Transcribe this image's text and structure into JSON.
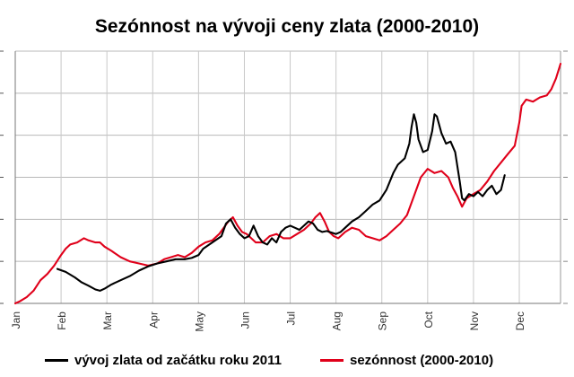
{
  "title": "Sezónnost na vývoji ceny zlata (2000-2010)",
  "chart_data": {
    "type": "line",
    "title": "Sezónnost na vývoji ceny zlata (2000-2010)",
    "xlabel": "",
    "ylabel": "",
    "x_tick_labels": [
      "Jan",
      "Feb",
      "Mar",
      "Apr",
      "May",
      "Jun",
      "Jul",
      "Aug",
      "Sep",
      "Oct",
      "Nov",
      "Dec"
    ],
    "y_tick_labels": [],
    "grid": true,
    "legend_position": "bottom",
    "x_unit": "months since start of year",
    "xlim": [
      0,
      11.9
    ],
    "ylim": [
      0,
      6
    ],
    "series": [
      {
        "name": "vývoj zlata od začátku roku 2011",
        "color": "#000000",
        "points": [
          [
            0.92,
            0.82
          ],
          [
            1.1,
            0.75
          ],
          [
            1.3,
            0.62
          ],
          [
            1.45,
            0.5
          ],
          [
            1.6,
            0.42
          ],
          [
            1.75,
            0.33
          ],
          [
            1.85,
            0.3
          ],
          [
            1.95,
            0.35
          ],
          [
            2.1,
            0.45
          ],
          [
            2.3,
            0.55
          ],
          [
            2.5,
            0.65
          ],
          [
            2.7,
            0.78
          ],
          [
            2.9,
            0.88
          ],
          [
            3.1,
            0.95
          ],
          [
            3.3,
            1.0
          ],
          [
            3.5,
            1.05
          ],
          [
            3.7,
            1.05
          ],
          [
            3.85,
            1.08
          ],
          [
            4.0,
            1.15
          ],
          [
            4.1,
            1.3
          ],
          [
            4.3,
            1.45
          ],
          [
            4.5,
            1.6
          ],
          [
            4.6,
            1.9
          ],
          [
            4.7,
            2.0
          ],
          [
            4.8,
            1.8
          ],
          [
            4.9,
            1.65
          ],
          [
            5.0,
            1.55
          ],
          [
            5.1,
            1.6
          ],
          [
            5.2,
            1.85
          ],
          [
            5.3,
            1.6
          ],
          [
            5.4,
            1.45
          ],
          [
            5.5,
            1.4
          ],
          [
            5.6,
            1.55
          ],
          [
            5.7,
            1.45
          ],
          [
            5.8,
            1.7
          ],
          [
            5.9,
            1.8
          ],
          [
            6.0,
            1.85
          ],
          [
            6.1,
            1.8
          ],
          [
            6.2,
            1.75
          ],
          [
            6.3,
            1.85
          ],
          [
            6.4,
            1.95
          ],
          [
            6.5,
            1.9
          ],
          [
            6.6,
            1.75
          ],
          [
            6.7,
            1.7
          ],
          [
            6.8,
            1.72
          ],
          [
            7.0,
            1.65
          ],
          [
            7.1,
            1.7
          ],
          [
            7.2,
            1.8
          ],
          [
            7.35,
            1.95
          ],
          [
            7.5,
            2.05
          ],
          [
            7.65,
            2.2
          ],
          [
            7.8,
            2.35
          ],
          [
            7.95,
            2.45
          ],
          [
            8.1,
            2.7
          ],
          [
            8.25,
            3.1
          ],
          [
            8.35,
            3.3
          ],
          [
            8.5,
            3.45
          ],
          [
            8.6,
            3.8
          ],
          [
            8.65,
            4.2
          ],
          [
            8.7,
            4.5
          ],
          [
            8.75,
            4.3
          ],
          [
            8.8,
            3.9
          ],
          [
            8.9,
            3.6
          ],
          [
            9.0,
            3.65
          ],
          [
            9.1,
            4.1
          ],
          [
            9.15,
            4.5
          ],
          [
            9.2,
            4.45
          ],
          [
            9.3,
            4.05
          ],
          [
            9.4,
            3.8
          ],
          [
            9.5,
            3.85
          ],
          [
            9.6,
            3.6
          ],
          [
            9.7,
            2.9
          ],
          [
            9.75,
            2.5
          ],
          [
            9.8,
            2.45
          ],
          [
            9.9,
            2.6
          ],
          [
            10.0,
            2.55
          ],
          [
            10.1,
            2.65
          ],
          [
            10.2,
            2.55
          ],
          [
            10.3,
            2.7
          ],
          [
            10.4,
            2.8
          ],
          [
            10.5,
            2.6
          ],
          [
            10.6,
            2.7
          ],
          [
            10.68,
            3.05
          ]
        ]
      },
      {
        "name": "sezónnost (2000-2010)",
        "color": "#e0001a",
        "points": [
          [
            0.0,
            0.0
          ],
          [
            0.1,
            0.05
          ],
          [
            0.25,
            0.15
          ],
          [
            0.4,
            0.3
          ],
          [
            0.55,
            0.55
          ],
          [
            0.7,
            0.7
          ],
          [
            0.85,
            0.9
          ],
          [
            1.0,
            1.15
          ],
          [
            1.1,
            1.3
          ],
          [
            1.2,
            1.4
          ],
          [
            1.35,
            1.45
          ],
          [
            1.5,
            1.55
          ],
          [
            1.6,
            1.5
          ],
          [
            1.75,
            1.45
          ],
          [
            1.85,
            1.45
          ],
          [
            1.95,
            1.35
          ],
          [
            2.1,
            1.25
          ],
          [
            2.3,
            1.1
          ],
          [
            2.5,
            1.0
          ],
          [
            2.7,
            0.95
          ],
          [
            2.9,
            0.9
          ],
          [
            3.1,
            0.95
          ],
          [
            3.25,
            1.05
          ],
          [
            3.4,
            1.1
          ],
          [
            3.55,
            1.15
          ],
          [
            3.7,
            1.1
          ],
          [
            3.85,
            1.2
          ],
          [
            4.0,
            1.35
          ],
          [
            4.15,
            1.45
          ],
          [
            4.3,
            1.5
          ],
          [
            4.45,
            1.65
          ],
          [
            4.55,
            1.8
          ],
          [
            4.65,
            1.95
          ],
          [
            4.75,
            2.05
          ],
          [
            4.85,
            1.85
          ],
          [
            4.95,
            1.7
          ],
          [
            5.05,
            1.65
          ],
          [
            5.15,
            1.55
          ],
          [
            5.25,
            1.45
          ],
          [
            5.4,
            1.45
          ],
          [
            5.55,
            1.6
          ],
          [
            5.7,
            1.65
          ],
          [
            5.85,
            1.55
          ],
          [
            6.0,
            1.55
          ],
          [
            6.15,
            1.65
          ],
          [
            6.3,
            1.75
          ],
          [
            6.45,
            1.9
          ],
          [
            6.55,
            2.05
          ],
          [
            6.65,
            2.15
          ],
          [
            6.75,
            1.95
          ],
          [
            6.85,
            1.7
          ],
          [
            6.95,
            1.6
          ],
          [
            7.05,
            1.55
          ],
          [
            7.2,
            1.7
          ],
          [
            7.35,
            1.8
          ],
          [
            7.5,
            1.75
          ],
          [
            7.65,
            1.6
          ],
          [
            7.8,
            1.55
          ],
          [
            7.95,
            1.5
          ],
          [
            8.1,
            1.6
          ],
          [
            8.25,
            1.75
          ],
          [
            8.4,
            1.9
          ],
          [
            8.55,
            2.1
          ],
          [
            8.7,
            2.55
          ],
          [
            8.85,
            3.0
          ],
          [
            9.0,
            3.2
          ],
          [
            9.15,
            3.1
          ],
          [
            9.3,
            3.15
          ],
          [
            9.45,
            3.0
          ],
          [
            9.55,
            2.75
          ],
          [
            9.65,
            2.55
          ],
          [
            9.75,
            2.3
          ],
          [
            9.85,
            2.5
          ],
          [
            10.0,
            2.6
          ],
          [
            10.15,
            2.7
          ],
          [
            10.3,
            2.9
          ],
          [
            10.45,
            3.15
          ],
          [
            10.6,
            3.35
          ],
          [
            10.75,
            3.55
          ],
          [
            10.9,
            3.75
          ],
          [
            11.0,
            4.3
          ],
          [
            11.05,
            4.7
          ],
          [
            11.15,
            4.85
          ],
          [
            11.3,
            4.8
          ],
          [
            11.45,
            4.9
          ],
          [
            11.6,
            4.95
          ],
          [
            11.7,
            5.1
          ],
          [
            11.8,
            5.35
          ],
          [
            11.9,
            5.7
          ]
        ]
      }
    ]
  }
}
